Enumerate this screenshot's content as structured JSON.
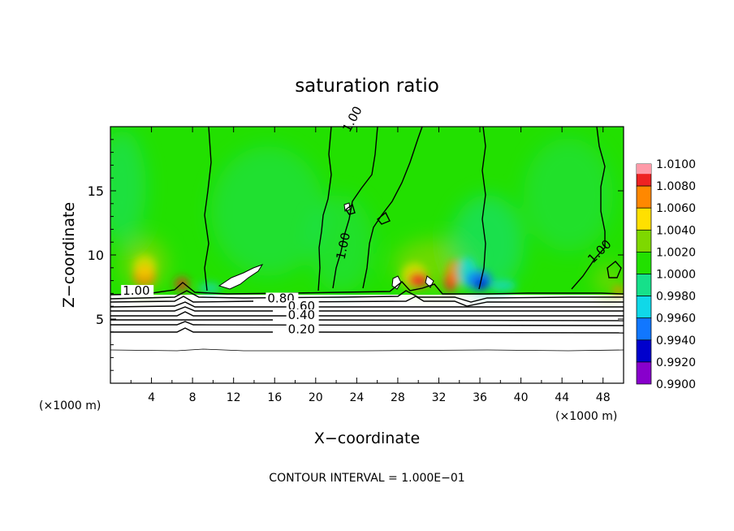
{
  "chart_data": {
    "type": "heatmap",
    "title": "saturation ratio",
    "xlabel": "X−coordinate",
    "ylabel": "Z−coordinate",
    "x_unit_left": "(×1000 m)",
    "x_unit_right": "(×1000 m)",
    "xlim": [
      0,
      50
    ],
    "ylim": [
      0,
      20
    ],
    "x_ticks": [
      4,
      8,
      12,
      16,
      20,
      24,
      28,
      32,
      36,
      40,
      44,
      48
    ],
    "y_ticks": [
      5,
      10,
      15
    ],
    "colorbar": {
      "labels": [
        "1.0100",
        "1.0080",
        "1.0060",
        "1.0040",
        "1.0020",
        "1.0000",
        "0.9980",
        "0.9960",
        "0.9940",
        "0.9920",
        "0.9900"
      ],
      "colors": [
        "#ff9aa8",
        "#ee2222",
        "#ff8800",
        "#ffe000",
        "#7ed800",
        "#22e000",
        "#16e08a",
        "#10d8e8",
        "#1177ff",
        "#0000cc",
        "#8800cc"
      ]
    },
    "contour_labels": [
      {
        "text": "1.00",
        "x": 23.3,
        "z": 19.5,
        "rot": -62
      },
      {
        "text": "1.00",
        "x": 22.8,
        "z": 9.6,
        "rot": -78
      },
      {
        "text": "1.00",
        "x": 47,
        "z": 9.3,
        "rot": -45
      },
      {
        "text": "1.00",
        "x": 1.2,
        "z": 6.9,
        "rot": 0
      },
      {
        "text": "0.80",
        "x": 15.3,
        "z": 6.3,
        "rot": 0
      },
      {
        "text": "0.60",
        "x": 17.3,
        "z": 5.7,
        "rot": 0
      },
      {
        "text": "0.40",
        "x": 17.3,
        "z": 5.0,
        "rot": 0
      },
      {
        "text": "0.20",
        "x": 17.3,
        "z": 3.9,
        "rot": 0
      }
    ],
    "footer": "CONTOUR INTERVAL = 1.000E−01"
  }
}
